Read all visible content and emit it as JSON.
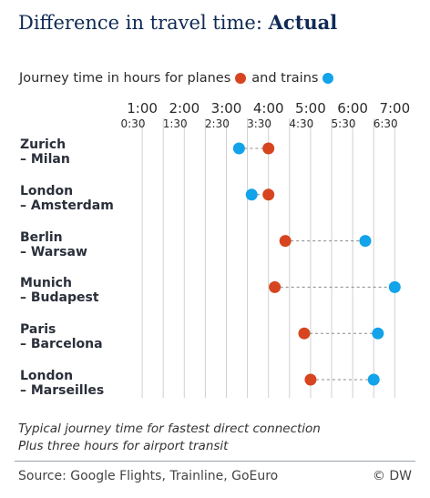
{
  "title_main": "Difference in travel time:",
  "title_accent": "Actual",
  "legend": {
    "text_planes": "Journey time in hours for planes",
    "text_trains": "and trains"
  },
  "colors": {
    "plane": "#d64520",
    "train": "#12a3ea",
    "grid": "#d0d0d0",
    "connector": "#888888"
  },
  "chart_data": {
    "type": "scatter",
    "title": "Difference in travel time: Actual",
    "subtitle": "Journey time in hours for planes and trains",
    "x_axis_major_ticks": [
      "1:00",
      "2:00",
      "3:00",
      "4:00",
      "5:00",
      "6:00",
      "7:00"
    ],
    "x_axis_minor_ticks": [
      "0:30",
      "1:30",
      "2:30",
      "3:30",
      "4:30",
      "5:30",
      "6:30"
    ],
    "xlim_hours": [
      0.5,
      7.0
    ],
    "categories": [
      "Zurich – Milan",
      "London – Amsterdam",
      "Berlin – Warsaw",
      "Munich – Budapest",
      "Paris – Barcelona",
      "London – Marseilles"
    ],
    "route_labels": [
      [
        "Zurich",
        "– Milan"
      ],
      [
        "London",
        "– Amsterdam"
      ],
      [
        "Berlin",
        "– Warsaw"
      ],
      [
        "Munich",
        "– Budapest"
      ],
      [
        "Paris",
        "– Barcelona"
      ],
      [
        "London",
        "– Marseilles"
      ]
    ],
    "series": [
      {
        "name": "planes",
        "color": "#d64520",
        "values_hours": [
          4.0,
          4.0,
          4.4,
          4.15,
          4.85,
          5.0
        ]
      },
      {
        "name": "trains",
        "color": "#12a3ea",
        "values_hours": [
          3.3,
          3.6,
          6.3,
          7.0,
          6.6,
          6.5
        ]
      }
    ],
    "grid": true
  },
  "note_line1": "Typical journey time for fastest direct connection",
  "note_line2": "Plus three hours for airport transit",
  "source": "Source: Google Flights, Trainline, GoEuro",
  "credit": "© DW"
}
